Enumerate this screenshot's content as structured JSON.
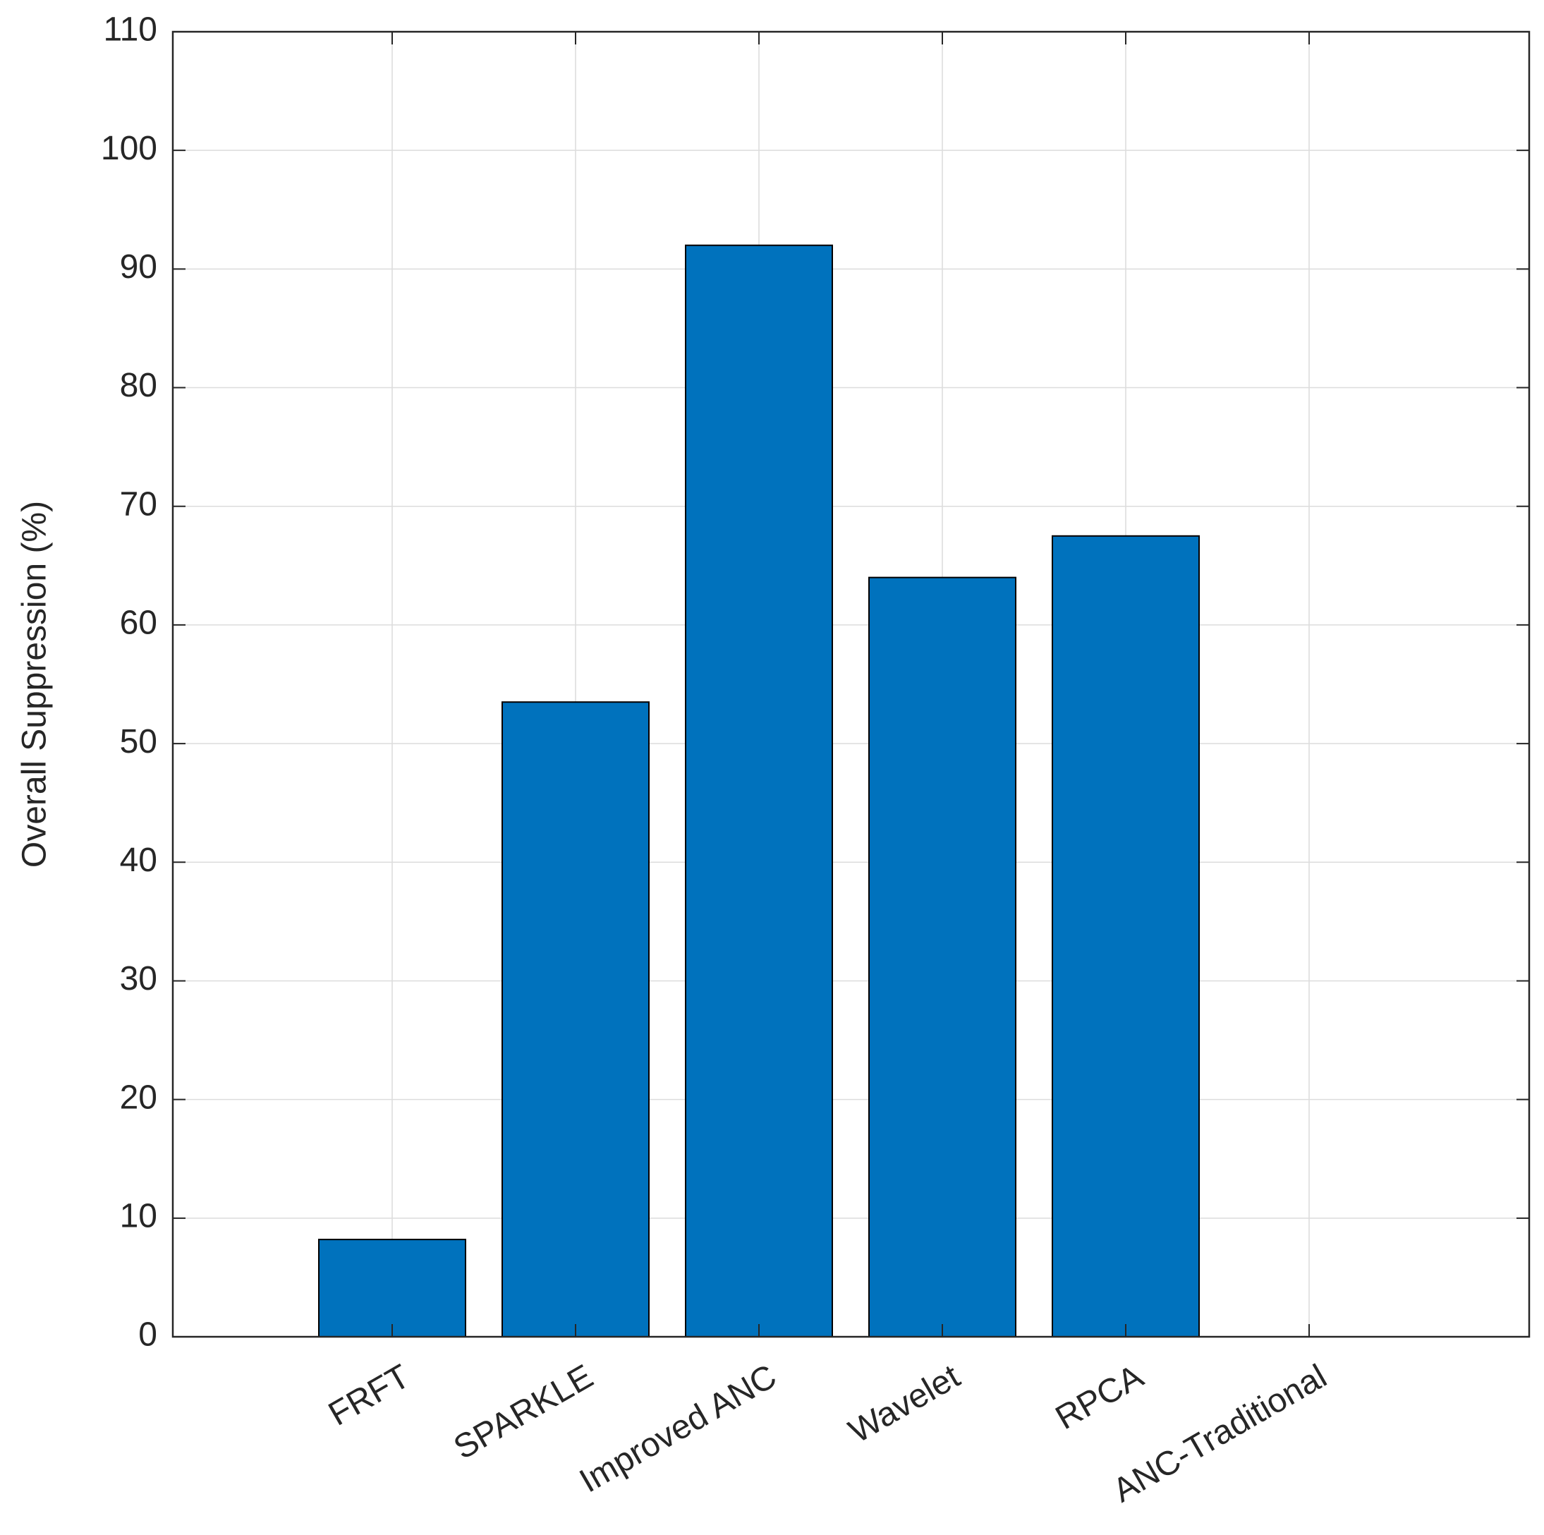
{
  "chart_data": {
    "type": "bar",
    "y_label": "Overall Suppression (%)",
    "categories": [
      "FRFT",
      "SPARKLE",
      "Improved ANC",
      "Wavelet",
      "RPCA",
      "ANC-Traditional"
    ],
    "values": [
      8.2,
      53.5,
      92,
      64,
      67.5,
      0
    ],
    "color": "#0072bd",
    "ylim": [
      0,
      110
    ],
    "yticks": [
      0,
      10,
      20,
      30,
      40,
      50,
      60,
      70,
      80,
      90,
      100,
      110
    ],
    "grid": true
  }
}
